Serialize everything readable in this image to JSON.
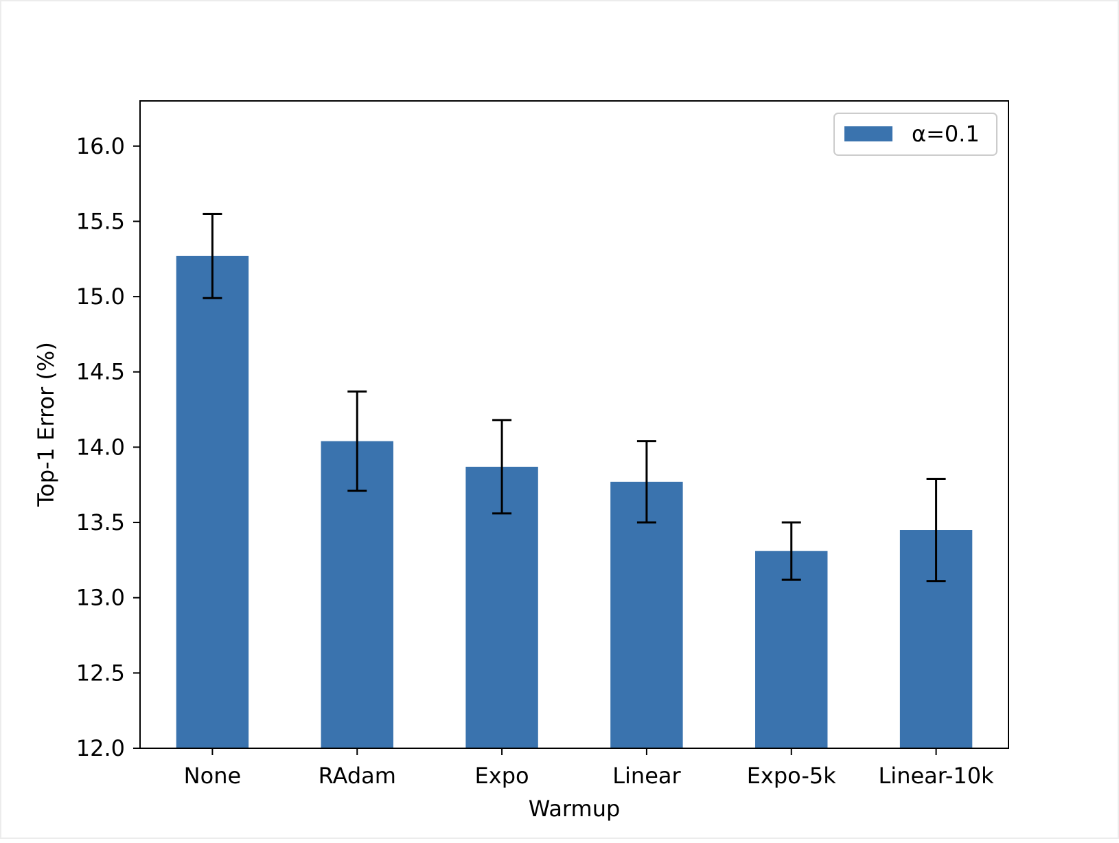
{
  "chart_data": {
    "type": "bar",
    "title": "",
    "xlabel": "Warmup",
    "ylabel": "Top-1 Error (%)",
    "categories": [
      "None",
      "RAdam",
      "Expo",
      "Linear",
      "Expo-5k",
      "Linear-10k"
    ],
    "series": [
      {
        "name": "α=0.1",
        "color": "#3a73ae",
        "values": [
          15.27,
          14.04,
          13.87,
          13.77,
          13.31,
          13.45
        ],
        "error_low": [
          14.99,
          13.71,
          13.56,
          13.5,
          13.12,
          13.11
        ],
        "error_high": [
          15.55,
          14.37,
          14.18,
          14.04,
          13.5,
          13.79
        ]
      }
    ],
    "ylim": [
      12.0,
      16.3
    ],
    "yticks": [
      "12.0",
      "12.5",
      "13.0",
      "13.5",
      "14.0",
      "14.5",
      "15.0",
      "15.5",
      "16.0"
    ],
    "grid": false,
    "legend_position": "top-right"
  }
}
